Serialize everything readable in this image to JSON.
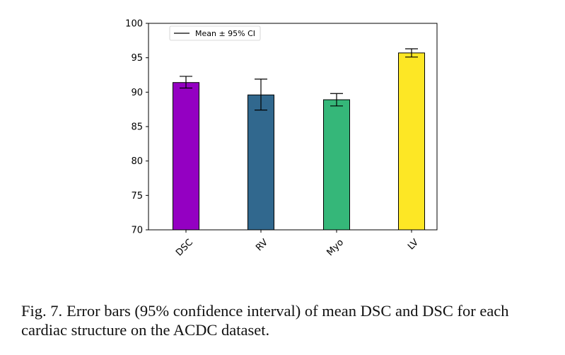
{
  "chart_data": {
    "type": "bar",
    "title": "",
    "xlabel": "",
    "ylabel": "",
    "categories": [
      "DSC",
      "RV",
      "Myo",
      "LV"
    ],
    "values": [
      91.4,
      89.6,
      88.9,
      95.7
    ],
    "ci_lower": [
      90.6,
      87.4,
      88.0,
      95.1
    ],
    "ci_upper": [
      92.3,
      91.9,
      89.8,
      96.3
    ],
    "colors": [
      "#9400c2",
      "#31688e",
      "#35b779",
      "#fde725"
    ],
    "ylim": [
      70,
      100
    ],
    "yticks": [
      70,
      75,
      80,
      85,
      90,
      95,
      100
    ],
    "grid": false,
    "legend": {
      "label": "Mean ± 95% CI",
      "placement": "top-left"
    }
  },
  "caption": {
    "label": "Fig. 7.",
    "text": "Error bars (95% confidence interval) of mean DSC and DSC for each cardiac structure on the ACDC dataset."
  }
}
